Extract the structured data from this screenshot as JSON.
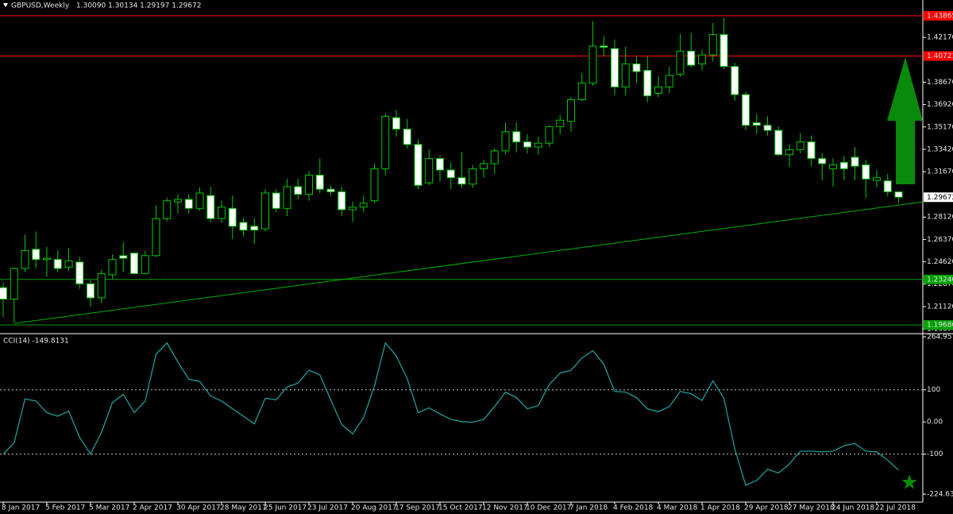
{
  "chart_data": [
    {
      "type": "candlestick",
      "title": "GBPUSD,Weekly",
      "subtitle": "1.30090 1.30134 1.29197 1.29672",
      "categories": [
        "8 Jan 2017",
        null,
        null,
        null,
        "5 Feb 2017",
        null,
        null,
        null,
        "5 Mar 2017",
        null,
        null,
        null,
        "2 Apr 2017",
        null,
        null,
        null,
        "30 Apr 2017",
        null,
        null,
        null,
        "28 May 2017",
        null,
        null,
        null,
        "25 Jun 2017",
        null,
        null,
        null,
        "23 Jul 2017",
        null,
        null,
        null,
        "20 Aug 2017",
        null,
        null,
        null,
        "17 Sep 2017",
        null,
        null,
        null,
        "15 Oct 2017",
        null,
        null,
        null,
        "12 Nov 2017",
        null,
        null,
        null,
        "10 Dec 2017",
        null,
        null,
        null,
        "7 Jan 2018",
        null,
        null,
        null,
        "4 Feb 2018",
        null,
        null,
        null,
        "4 Mar 2018",
        null,
        null,
        null,
        "1 Apr 2018",
        null,
        null,
        null,
        "29 Apr 2018",
        null,
        null,
        null,
        "27 May 2018",
        null,
        null,
        null,
        "24 Jun 2018",
        null,
        null,
        null,
        "22 Jul 2018",
        null,
        null
      ],
      "open": [
        1.226,
        1.217,
        1.241,
        1.256,
        1.248,
        1.248,
        1.242,
        1.246,
        1.229,
        1.218,
        1.236,
        1.251,
        1.253,
        1.237,
        1.251,
        1.28,
        1.293,
        1.295,
        1.288,
        1.298,
        1.28,
        1.288,
        1.277,
        1.274,
        1.272,
        1.3,
        1.288,
        1.305,
        1.299,
        1.314,
        1.303,
        1.301,
        1.287,
        1.289,
        1.294,
        1.319,
        1.359,
        1.35,
        1.338,
        1.308,
        1.327,
        1.318,
        1.312,
        1.307,
        1.319,
        1.323,
        1.333,
        1.348,
        1.34,
        1.336,
        1.339,
        1.352,
        1.356,
        1.373,
        1.386,
        1.415,
        1.413,
        1.383,
        1.401,
        1.396,
        1.378,
        1.383,
        1.393,
        1.411,
        1.401,
        1.408,
        1.424,
        1.399,
        1.377,
        1.355,
        1.353,
        1.349,
        1.33,
        1.334,
        1.34,
        1.327,
        1.319,
        1.324,
        1.328,
        1.322,
        1.31,
        1.3095,
        1.3009
      ],
      "high": [
        1.23,
        1.242,
        1.2675,
        1.27,
        1.258,
        1.255,
        1.257,
        1.25,
        1.232,
        1.24,
        1.252,
        1.2615,
        1.253,
        1.255,
        1.2905,
        1.2965,
        1.299,
        1.299,
        1.3045,
        1.305,
        1.294,
        1.298,
        1.281,
        1.28,
        1.303,
        1.303,
        1.311,
        1.311,
        1.317,
        1.327,
        1.306,
        1.305,
        1.2935,
        1.298,
        1.323,
        1.362,
        1.365,
        1.358,
        1.342,
        1.334,
        1.329,
        1.324,
        1.332,
        1.322,
        1.326,
        1.335,
        1.355,
        1.355,
        1.346,
        1.344,
        1.353,
        1.361,
        1.375,
        1.394,
        1.4345,
        1.423,
        1.42,
        1.4145,
        1.407,
        1.407,
        1.392,
        1.399,
        1.4245,
        1.425,
        1.412,
        1.433,
        1.437,
        1.402,
        1.379,
        1.362,
        1.36,
        1.352,
        1.338,
        1.347,
        1.345,
        1.331,
        1.327,
        1.329,
        1.336,
        1.326,
        1.318,
        1.315,
        1.30134
      ],
      "low": [
        1.203,
        1.1987,
        1.238,
        1.241,
        1.2345,
        1.238,
        1.239,
        1.225,
        1.211,
        1.214,
        1.233,
        1.238,
        1.2365,
        1.2365,
        1.25,
        1.278,
        1.284,
        1.284,
        1.286,
        1.277,
        1.277,
        1.264,
        1.266,
        1.26,
        1.27,
        1.285,
        1.282,
        1.295,
        1.294,
        1.3,
        1.298,
        1.282,
        1.2775,
        1.285,
        1.292,
        1.314,
        1.344,
        1.335,
        1.303,
        1.306,
        1.309,
        1.303,
        1.304,
        1.304,
        1.312,
        1.315,
        1.33,
        1.332,
        1.331,
        1.33,
        1.336,
        1.346,
        1.348,
        1.372,
        1.384,
        1.407,
        1.3765,
        1.3765,
        1.386,
        1.371,
        1.375,
        1.378,
        1.391,
        1.398,
        1.396,
        1.403,
        1.397,
        1.372,
        1.349,
        1.346,
        1.345,
        1.329,
        1.3205,
        1.331,
        1.321,
        1.31,
        1.305,
        1.31,
        1.31,
        1.296,
        1.3045,
        1.2975,
        1.29197
      ],
      "close": [
        1.217,
        1.241,
        1.255,
        1.248,
        1.249,
        1.241,
        1.247,
        1.229,
        1.218,
        1.237,
        1.248,
        1.249,
        1.237,
        1.251,
        1.28,
        1.294,
        1.295,
        1.288,
        1.3,
        1.28,
        1.289,
        1.274,
        1.271,
        1.271,
        1.3,
        1.288,
        1.305,
        1.299,
        1.314,
        1.303,
        1.301,
        1.287,
        1.289,
        1.292,
        1.319,
        1.36,
        1.35,
        1.338,
        1.306,
        1.327,
        1.318,
        1.312,
        1.307,
        1.319,
        1.323,
        1.333,
        1.348,
        1.34,
        1.336,
        1.339,
        1.352,
        1.357,
        1.373,
        1.386,
        1.415,
        1.414,
        1.383,
        1.401,
        1.395,
        1.376,
        1.383,
        1.392,
        1.411,
        1.4,
        1.408,
        1.424,
        1.399,
        1.377,
        1.353,
        1.353,
        1.349,
        1.33,
        1.334,
        1.34,
        1.327,
        1.323,
        1.322,
        1.319,
        1.321,
        1.311,
        1.312,
        1.301,
        1.29672
      ],
      "up_color": "#000000",
      "down_color": "#ffffff",
      "wick_color": "#00c800",
      "ylim": [
        1.19,
        1.451
      ],
      "yticks": [
        {
          "value": 1.4217,
          "label": "1.42170"
        },
        {
          "value": 1.3867,
          "label": "1.38670"
        },
        {
          "value": 1.3692,
          "label": "1.36920"
        },
        {
          "value": 1.3517,
          "label": "1.35170"
        },
        {
          "value": 1.3342,
          "label": "1.33420"
        },
        {
          "value": 1.3167,
          "label": "1.31670"
        },
        {
          "value": 1.2812,
          "label": "1.28120"
        },
        {
          "value": 1.2637,
          "label": "1.26370"
        },
        {
          "value": 1.2462,
          "label": "1.24620"
        },
        {
          "value": 1.2287,
          "label": "1.22870"
        },
        {
          "value": 1.2112,
          "label": "1.21120"
        },
        {
          "value": 1.1937,
          "label": "1.19370"
        }
      ],
      "hlines": [
        {
          "value": 1.43865,
          "label": "1.43865",
          "color": "#ff0000"
        },
        {
          "value": 1.40721,
          "label": "1.40721",
          "color": "#ff0000"
        },
        {
          "value": 1.2324,
          "label": "1.23240",
          "color": "#00a000"
        },
        {
          "value": 1.1968,
          "label": "1.19680",
          "color": "#00a000"
        }
      ],
      "last_price": {
        "value": 1.29672,
        "label": "1.29672"
      },
      "trendline": {
        "values": [
          1.198,
          1.2931
        ],
        "color": "#00b000"
      }
    },
    {
      "type": "line",
      "title": "CCI(14) -149.8131",
      "color": "#1fa7a7",
      "values": [
        -100,
        -65,
        72,
        65,
        29,
        18,
        34,
        -48,
        -100,
        -32,
        60,
        86,
        29,
        65,
        211,
        246,
        187,
        133,
        126,
        81,
        65,
        41,
        18,
        -6,
        74,
        69,
        109,
        121,
        161,
        147,
        69,
        -8,
        -37,
        13,
        112,
        246,
        206,
        135,
        29,
        44,
        25,
        8,
        1,
        -1,
        8,
        48,
        93,
        76,
        41,
        51,
        116,
        152,
        161,
        199,
        222,
        180,
        95,
        93,
        76,
        41,
        32,
        48,
        95,
        88,
        67,
        128,
        74,
        -84,
        -197,
        -182,
        -147,
        -159,
        -131,
        -91,
        -91,
        -93,
        -91,
        -74,
        -67,
        -91,
        -93,
        -119,
        -149.8131
      ],
      "ylim": [
        -224.6351,
        264.9573
      ],
      "yticks": [
        264.9573,
        100,
        {
          "value": 0,
          "label": "0.00"
        },
        -100,
        -224.6351
      ],
      "levels": [
        100,
        -100
      ]
    }
  ]
}
